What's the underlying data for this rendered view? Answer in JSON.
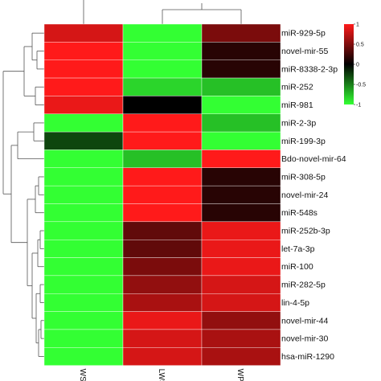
{
  "chart_data": {
    "type": "heatmap",
    "columns": [
      "WS",
      "LWS",
      "WPS"
    ],
    "rows": [
      "miR-929-5p",
      "novel-mir-55",
      "miR-8338-2-3p",
      "miR-252",
      "miR-981",
      "miR-2-3p",
      "miR-199-3p",
      "Bdo-novel-mir-64",
      "miR-308-5p",
      "novel-mir-24",
      "miR-548s",
      "miR-252b-3p",
      "let-7a-3p",
      "miR-100",
      "miR-282-5p",
      "lin-4-5p",
      "novel-mir-44",
      "novel-mir-30",
      "hsa-miR-1290"
    ],
    "values": [
      [
        0.8,
        -1.0,
        0.4
      ],
      [
        1.0,
        -1.0,
        0.1
      ],
      [
        1.0,
        -1.0,
        0.1
      ],
      [
        1.0,
        -0.8,
        -0.7
      ],
      [
        0.9,
        0.0,
        -1.0
      ],
      [
        -1.0,
        1.0,
        -0.7
      ],
      [
        -0.2,
        1.0,
        -1.0
      ],
      [
        -1.0,
        -0.7,
        1.0
      ],
      [
        -1.0,
        1.0,
        0.1
      ],
      [
        -1.0,
        1.0,
        0.1
      ],
      [
        -1.0,
        1.0,
        0.1
      ],
      [
        -1.0,
        0.3,
        0.9
      ],
      [
        -1.0,
        0.3,
        0.9
      ],
      [
        -1.0,
        0.4,
        0.9
      ],
      [
        -1.0,
        0.5,
        0.8
      ],
      [
        -1.0,
        0.6,
        0.8
      ],
      [
        -1.0,
        0.9,
        0.5
      ],
      [
        -1.0,
        0.8,
        0.6
      ],
      [
        -1.0,
        0.8,
        0.6
      ]
    ],
    "color_scale": {
      "min": -1,
      "mid": 0,
      "max": 1,
      "low": "#33ff33",
      "midColor": "#000000",
      "high": "#ff1a1a"
    },
    "legend_ticks": [
      "1",
      "0.5",
      "0",
      "-0.5",
      "-1"
    ],
    "legend_placement": "top-right",
    "row_dendrogram": true,
    "column_dendrogram": true
  }
}
